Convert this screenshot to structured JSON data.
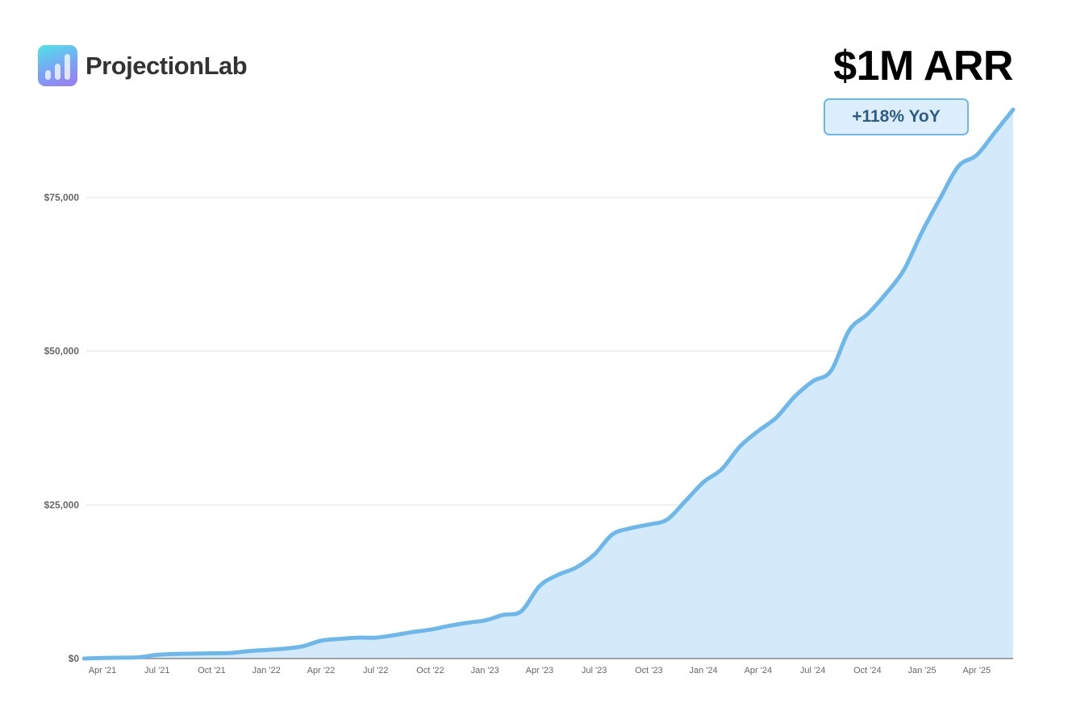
{
  "brand": {
    "name": "ProjectionLab",
    "icon": "bar-chart-logo-icon"
  },
  "headline": "$1M ARR",
  "badge": "+118% YoY",
  "colors": {
    "line": "#6cb8ec",
    "fill": "#d4e9f9",
    "grid": "#e0e0e0",
    "badge_text": "#2d5d86"
  },
  "chart_data": {
    "type": "area",
    "title": "",
    "xlabel": "",
    "ylabel": "",
    "ylim": [
      0,
      90000
    ],
    "grid": true,
    "y_ticks": [
      {
        "value": 0,
        "label": "$0"
      },
      {
        "value": 25000,
        "label": "$25,000"
      },
      {
        "value": 50000,
        "label": "$50,000"
      },
      {
        "value": 75000,
        "label": "$75,000"
      }
    ],
    "x_tick_labels": [
      "Apr '21",
      "Jul '21",
      "Oct '21",
      "Jan '22",
      "Apr '22",
      "Jul '22",
      "Oct '22",
      "Jan '23",
      "Apr '23",
      "Jul '23",
      "Oct '23",
      "Jan '24",
      "Apr '24",
      "Jul '24",
      "Oct '24",
      "Jan '25",
      "Apr '25"
    ],
    "x": [
      "2021-03",
      "2021-04",
      "2021-05",
      "2021-06",
      "2021-07",
      "2021-08",
      "2021-09",
      "2021-10",
      "2021-11",
      "2021-12",
      "2022-01",
      "2022-02",
      "2022-03",
      "2022-04",
      "2022-05",
      "2022-06",
      "2022-07",
      "2022-08",
      "2022-09",
      "2022-10",
      "2022-11",
      "2022-12",
      "2023-01",
      "2023-02",
      "2023-03",
      "2023-04",
      "2023-05",
      "2023-06",
      "2023-07",
      "2023-08",
      "2023-09",
      "2023-10",
      "2023-11",
      "2023-12",
      "2024-01",
      "2024-02",
      "2024-03",
      "2024-04",
      "2024-05",
      "2024-06",
      "2024-07",
      "2024-08",
      "2024-09",
      "2024-10",
      "2024-11",
      "2024-12",
      "2025-01",
      "2025-02",
      "2025-03",
      "2025-04",
      "2025-05",
      "2025-06"
    ],
    "values": [
      0,
      100,
      150,
      200,
      600,
      750,
      800,
      850,
      900,
      1200,
      1400,
      1600,
      2000,
      2900,
      3200,
      3400,
      3400,
      3800,
      4300,
      4700,
      5300,
      5800,
      6200,
      7100,
      7700,
      11800,
      13600,
      14800,
      16900,
      20200,
      21200,
      21800,
      22600,
      25600,
      28700,
      30800,
      34500,
      37000,
      39200,
      42600,
      45100,
      46800,
      53400,
      56000,
      59300,
      63200,
      69400,
      74900,
      80100,
      81900,
      85600,
      89300
    ]
  }
}
